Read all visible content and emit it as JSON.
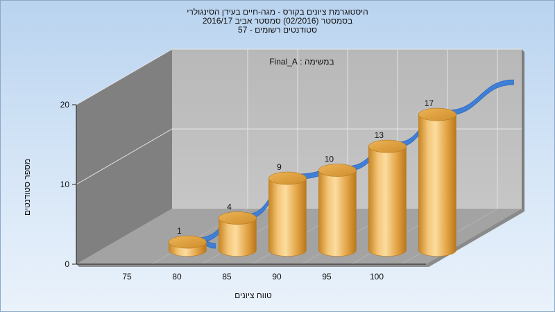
{
  "chart_data": {
    "type": "bar",
    "title_lines": [
      "היסטוגרמת ציונים בקורס - מגה-חיים בעידן הסינגולרי",
      "בסמסטר  (02/2016)  סמסטר אביב 2016/17",
      "סטודנטים רשומים - 57"
    ],
    "annotation": "במשימה : Final_A",
    "xlabel": "טווח ציונים",
    "ylabel": "מספר סטודנטים",
    "categories": [
      "75",
      "80",
      "85",
      "90",
      "95",
      "100"
    ],
    "values": [
      1,
      4,
      9,
      10,
      13,
      17
    ],
    "x_ticks": [
      "75",
      "80",
      "85",
      "90",
      "95",
      "100"
    ],
    "y_ticks": [
      "0",
      "10",
      "20"
    ],
    "ylim": [
      0,
      20
    ],
    "trend_line": true,
    "style_3d": true,
    "colors": {
      "bar": "#e0a441",
      "trend": "#3f7fd6"
    }
  }
}
